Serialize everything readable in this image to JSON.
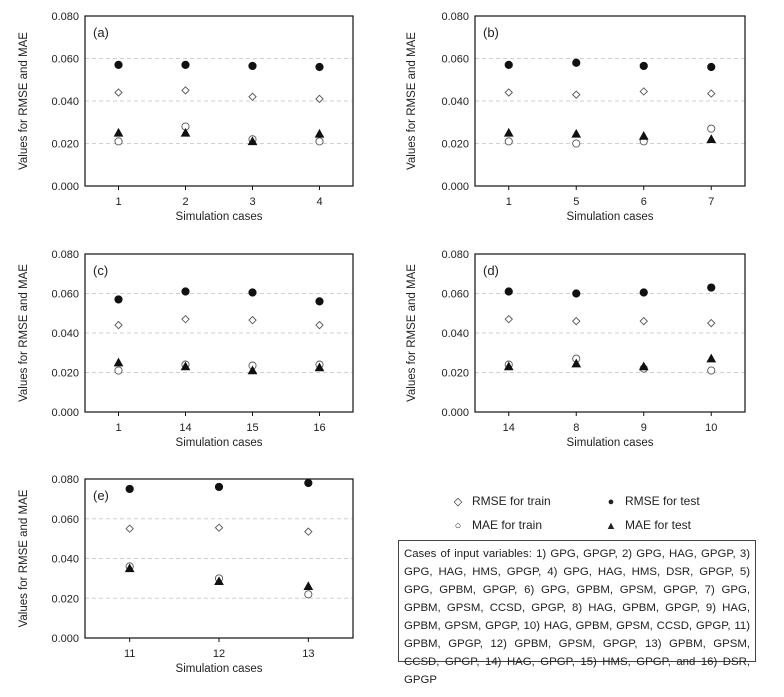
{
  "legend": {
    "rmse_train": "RMSE for train",
    "rmse_test": "RMSE for test",
    "mae_train": "MAE for train",
    "mae_test": "MAE for test"
  },
  "caption": "Cases of input variables: 1) GPG, GPGP, 2) GPG, HAG, GPGP, 3) GPG, HAG, HMS, GPGP, 4) GPG, HAG, HMS, DSR, GPGP, 5) GPG, GPBM, GPGP, 6) GPG, GPBM, GPSM, GPGP, 7) GPG, GPBM, GPSM, CCSD, GPGP, 8) HAG, GPBM, GPGP, 9) HAG, GPBM, GPSM, GPGP, 10) HAG, GPBM, GPSM, CCSD, GPGP, 11) GPBM, GPGP, 12) GPBM, GPSM, GPGP, 13) GPBM, GPSM, CCSD, GPGP, 14) HAG, GPGP, 15) HMS, GPGP, and 16) DSR, GPGP",
  "chart_data": [
    {
      "type": "scatter",
      "panel_label": "(a)",
      "xlabel": "Simulation cases",
      "ylabel": "Values for RMSE and MAE",
      "ylim": [
        0,
        0.08
      ],
      "yticks": [
        "0.000",
        "0.020",
        "0.040",
        "0.060",
        "0.080"
      ],
      "grid": true,
      "categories": [
        "1",
        "2",
        "3",
        "4"
      ],
      "series": [
        {
          "name": "RMSE for train",
          "values": [
            0.044,
            0.045,
            0.042,
            0.041
          ]
        },
        {
          "name": "RMSE for test",
          "values": [
            0.057,
            0.057,
            0.0565,
            0.056
          ]
        },
        {
          "name": "MAE for train",
          "values": [
            0.021,
            0.028,
            0.022,
            0.021
          ]
        },
        {
          "name": "MAE for test",
          "values": [
            0.025,
            0.025,
            0.021,
            0.0245
          ]
        }
      ]
    },
    {
      "type": "scatter",
      "panel_label": "(b)",
      "xlabel": "Simulation cases",
      "ylabel": "Values for RMSE and MAE",
      "ylim": [
        0,
        0.08
      ],
      "yticks": [
        "0.000",
        "0.020",
        "0.040",
        "0.060",
        "0.080"
      ],
      "grid": true,
      "categories": [
        "1",
        "5",
        "6",
        "7"
      ],
      "series": [
        {
          "name": "RMSE for train",
          "values": [
            0.044,
            0.043,
            0.0445,
            0.0435
          ]
        },
        {
          "name": "RMSE for test",
          "values": [
            0.057,
            0.058,
            0.0565,
            0.056
          ]
        },
        {
          "name": "MAE for train",
          "values": [
            0.021,
            0.02,
            0.021,
            0.027
          ]
        },
        {
          "name": "MAE for test",
          "values": [
            0.025,
            0.0245,
            0.0235,
            0.022
          ]
        }
      ]
    },
    {
      "type": "scatter",
      "panel_label": "(c)",
      "xlabel": "Simulation cases",
      "ylabel": "Values for RMSE and MAE",
      "ylim": [
        0,
        0.08
      ],
      "yticks": [
        "0.000",
        "0.020",
        "0.040",
        "0.060",
        "0.080"
      ],
      "grid": true,
      "categories": [
        "1",
        "14",
        "15",
        "16"
      ],
      "series": [
        {
          "name": "RMSE for train",
          "values": [
            0.044,
            0.047,
            0.0465,
            0.044
          ]
        },
        {
          "name": "RMSE for test",
          "values": [
            0.057,
            0.061,
            0.0605,
            0.056
          ]
        },
        {
          "name": "MAE for train",
          "values": [
            0.021,
            0.024,
            0.0235,
            0.024
          ]
        },
        {
          "name": "MAE for test",
          "values": [
            0.025,
            0.023,
            0.021,
            0.0225
          ]
        }
      ]
    },
    {
      "type": "scatter",
      "panel_label": "(d)",
      "xlabel": "Simulation cases",
      "ylabel": "Values for RMSE and MAE",
      "ylim": [
        0,
        0.08
      ],
      "yticks": [
        "0.000",
        "0.020",
        "0.040",
        "0.060",
        "0.080"
      ],
      "grid": true,
      "categories": [
        "14",
        "8",
        "9",
        "10"
      ],
      "series": [
        {
          "name": "RMSE for train",
          "values": [
            0.047,
            0.046,
            0.046,
            0.045
          ]
        },
        {
          "name": "RMSE for test",
          "values": [
            0.061,
            0.06,
            0.0605,
            0.063
          ]
        },
        {
          "name": "MAE for train",
          "values": [
            0.024,
            0.027,
            0.022,
            0.021
          ]
        },
        {
          "name": "MAE for test",
          "values": [
            0.023,
            0.0245,
            0.023,
            0.027
          ]
        }
      ]
    },
    {
      "type": "scatter",
      "panel_label": "(e)",
      "xlabel": "Simulation cases",
      "ylabel": "Values for RMSE and MAE",
      "ylim": [
        0,
        0.08
      ],
      "yticks": [
        "0.000",
        "0.020",
        "0.040",
        "0.060",
        "0.080"
      ],
      "grid": true,
      "categories": [
        "11",
        "12",
        "13"
      ],
      "series": [
        {
          "name": "RMSE for train",
          "values": [
            0.055,
            0.0555,
            0.0535
          ]
        },
        {
          "name": "RMSE for test",
          "values": [
            0.075,
            0.076,
            0.078
          ]
        },
        {
          "name": "MAE for train",
          "values": [
            0.036,
            0.03,
            0.022
          ]
        },
        {
          "name": "MAE for test",
          "values": [
            0.035,
            0.0285,
            0.026
          ]
        }
      ]
    }
  ]
}
